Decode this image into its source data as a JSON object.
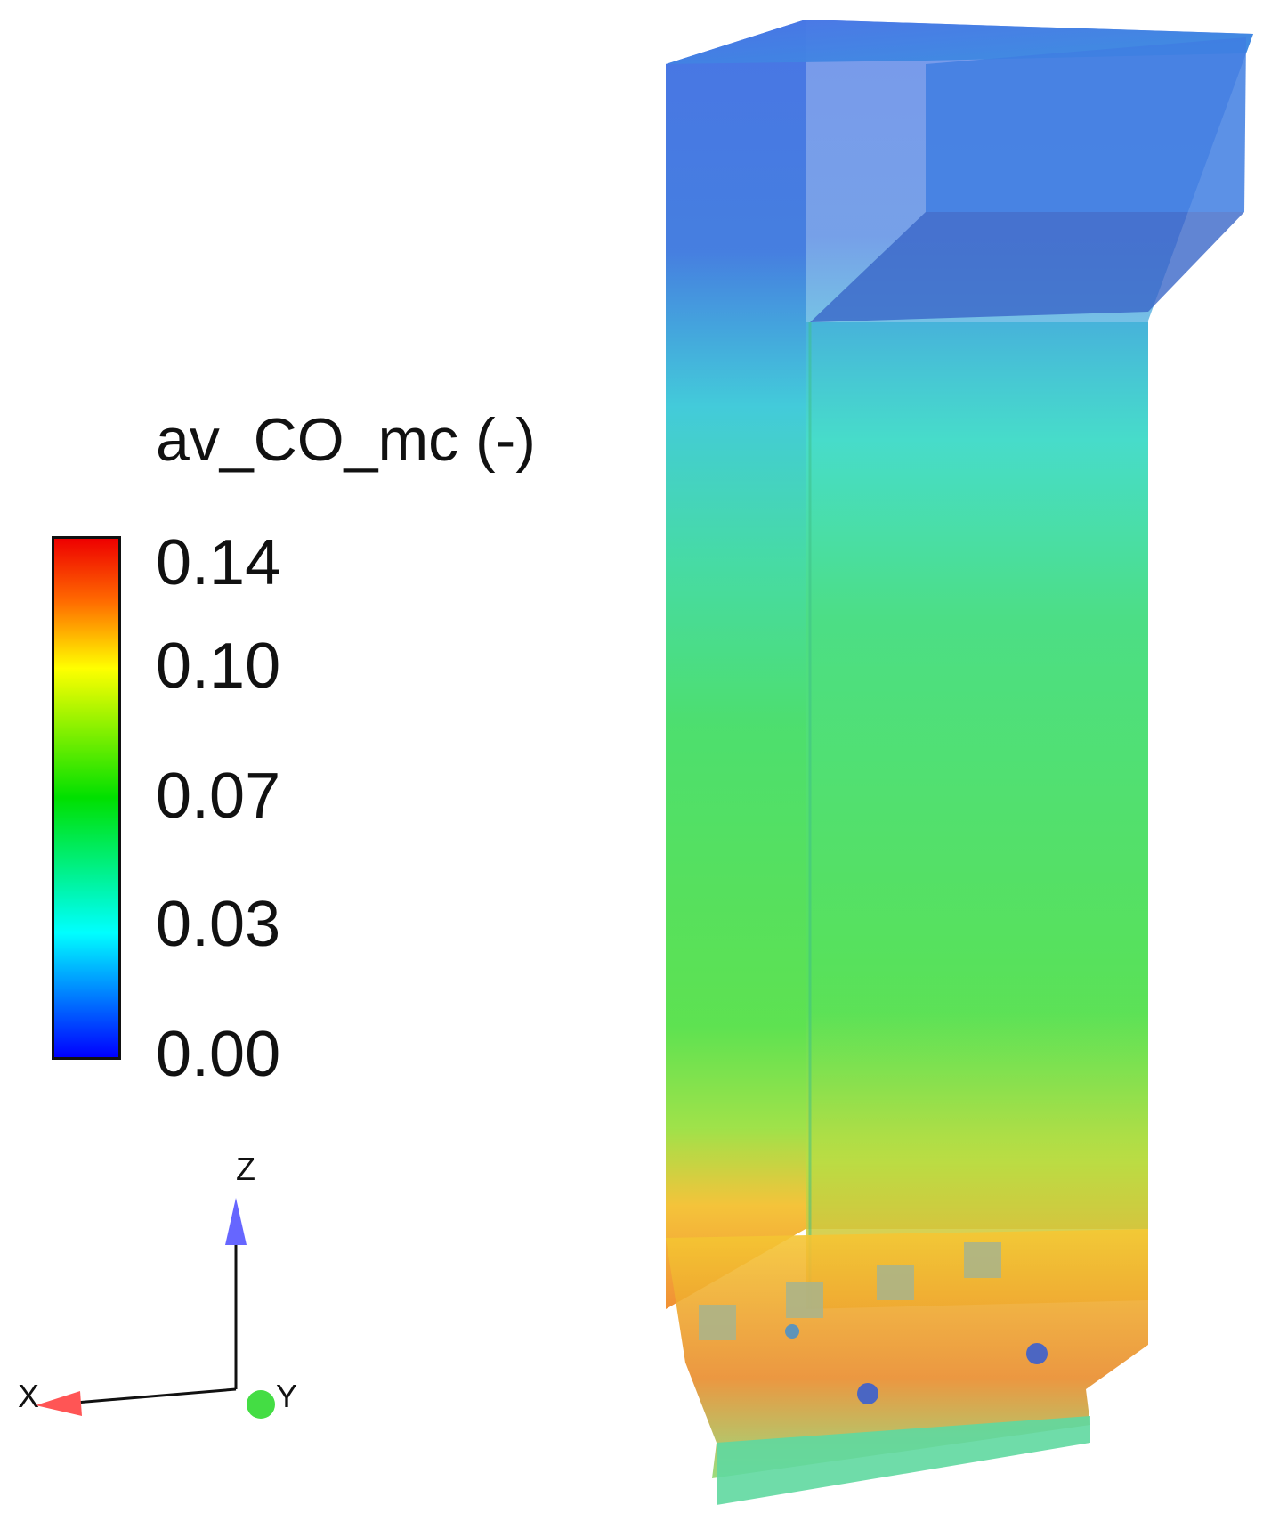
{
  "legend": {
    "title": "av_CO_mc (-)",
    "ticks": [
      "0.14",
      "0.10",
      "0.07",
      "0.03",
      "0.00"
    ],
    "colormap": [
      "#ff0000",
      "#ff7a00",
      "#ffff00",
      "#00e000",
      "#00ffff",
      "#0000ff"
    ]
  },
  "axes_triad": {
    "x_label": "X",
    "y_label": "Y",
    "z_label": "Z",
    "x_color": "#ff5555",
    "y_color": "#44dd44",
    "z_color": "#6666ff"
  },
  "model": {
    "description_colors": {
      "top": "#3c6fe0",
      "middle": "#3fe07a",
      "bottom": "#ffb020"
    }
  }
}
